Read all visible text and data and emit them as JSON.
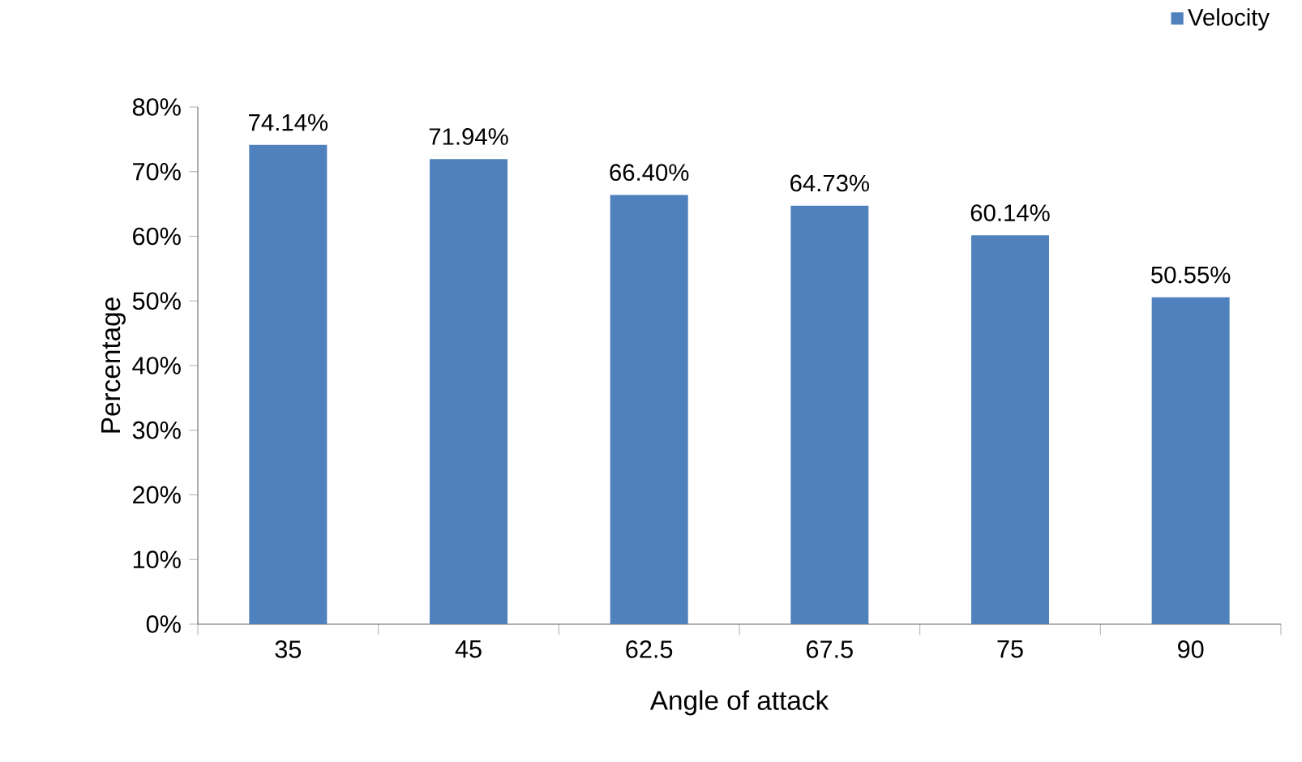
{
  "chart_data": {
    "type": "bar",
    "xlabel": "Angle of attack",
    "ylabel": "Percentage",
    "categories": [
      "35",
      "45",
      "62.5",
      "67.5",
      "75",
      "90"
    ],
    "series": [
      {
        "name": "Velocity",
        "color": "#4f81bd",
        "values": [
          74.14,
          71.94,
          66.4,
          64.73,
          60.14,
          50.55
        ],
        "value_labels": [
          "74.14%",
          "71.94%",
          "66.40%",
          "64.73%",
          "60.14%",
          "50.55%"
        ]
      }
    ],
    "ylim": [
      0,
      80
    ],
    "yticks": [
      {
        "value": 0,
        "label": "0%"
      },
      {
        "value": 10,
        "label": "10%"
      },
      {
        "value": 20,
        "label": "20%"
      },
      {
        "value": 30,
        "label": "30%"
      },
      {
        "value": 40,
        "label": "40%"
      },
      {
        "value": 50,
        "label": "50%"
      },
      {
        "value": 60,
        "label": "60%"
      },
      {
        "value": 70,
        "label": "70%"
      },
      {
        "value": 80,
        "label": "80%"
      }
    ],
    "grid": false,
    "legend": "top right"
  }
}
